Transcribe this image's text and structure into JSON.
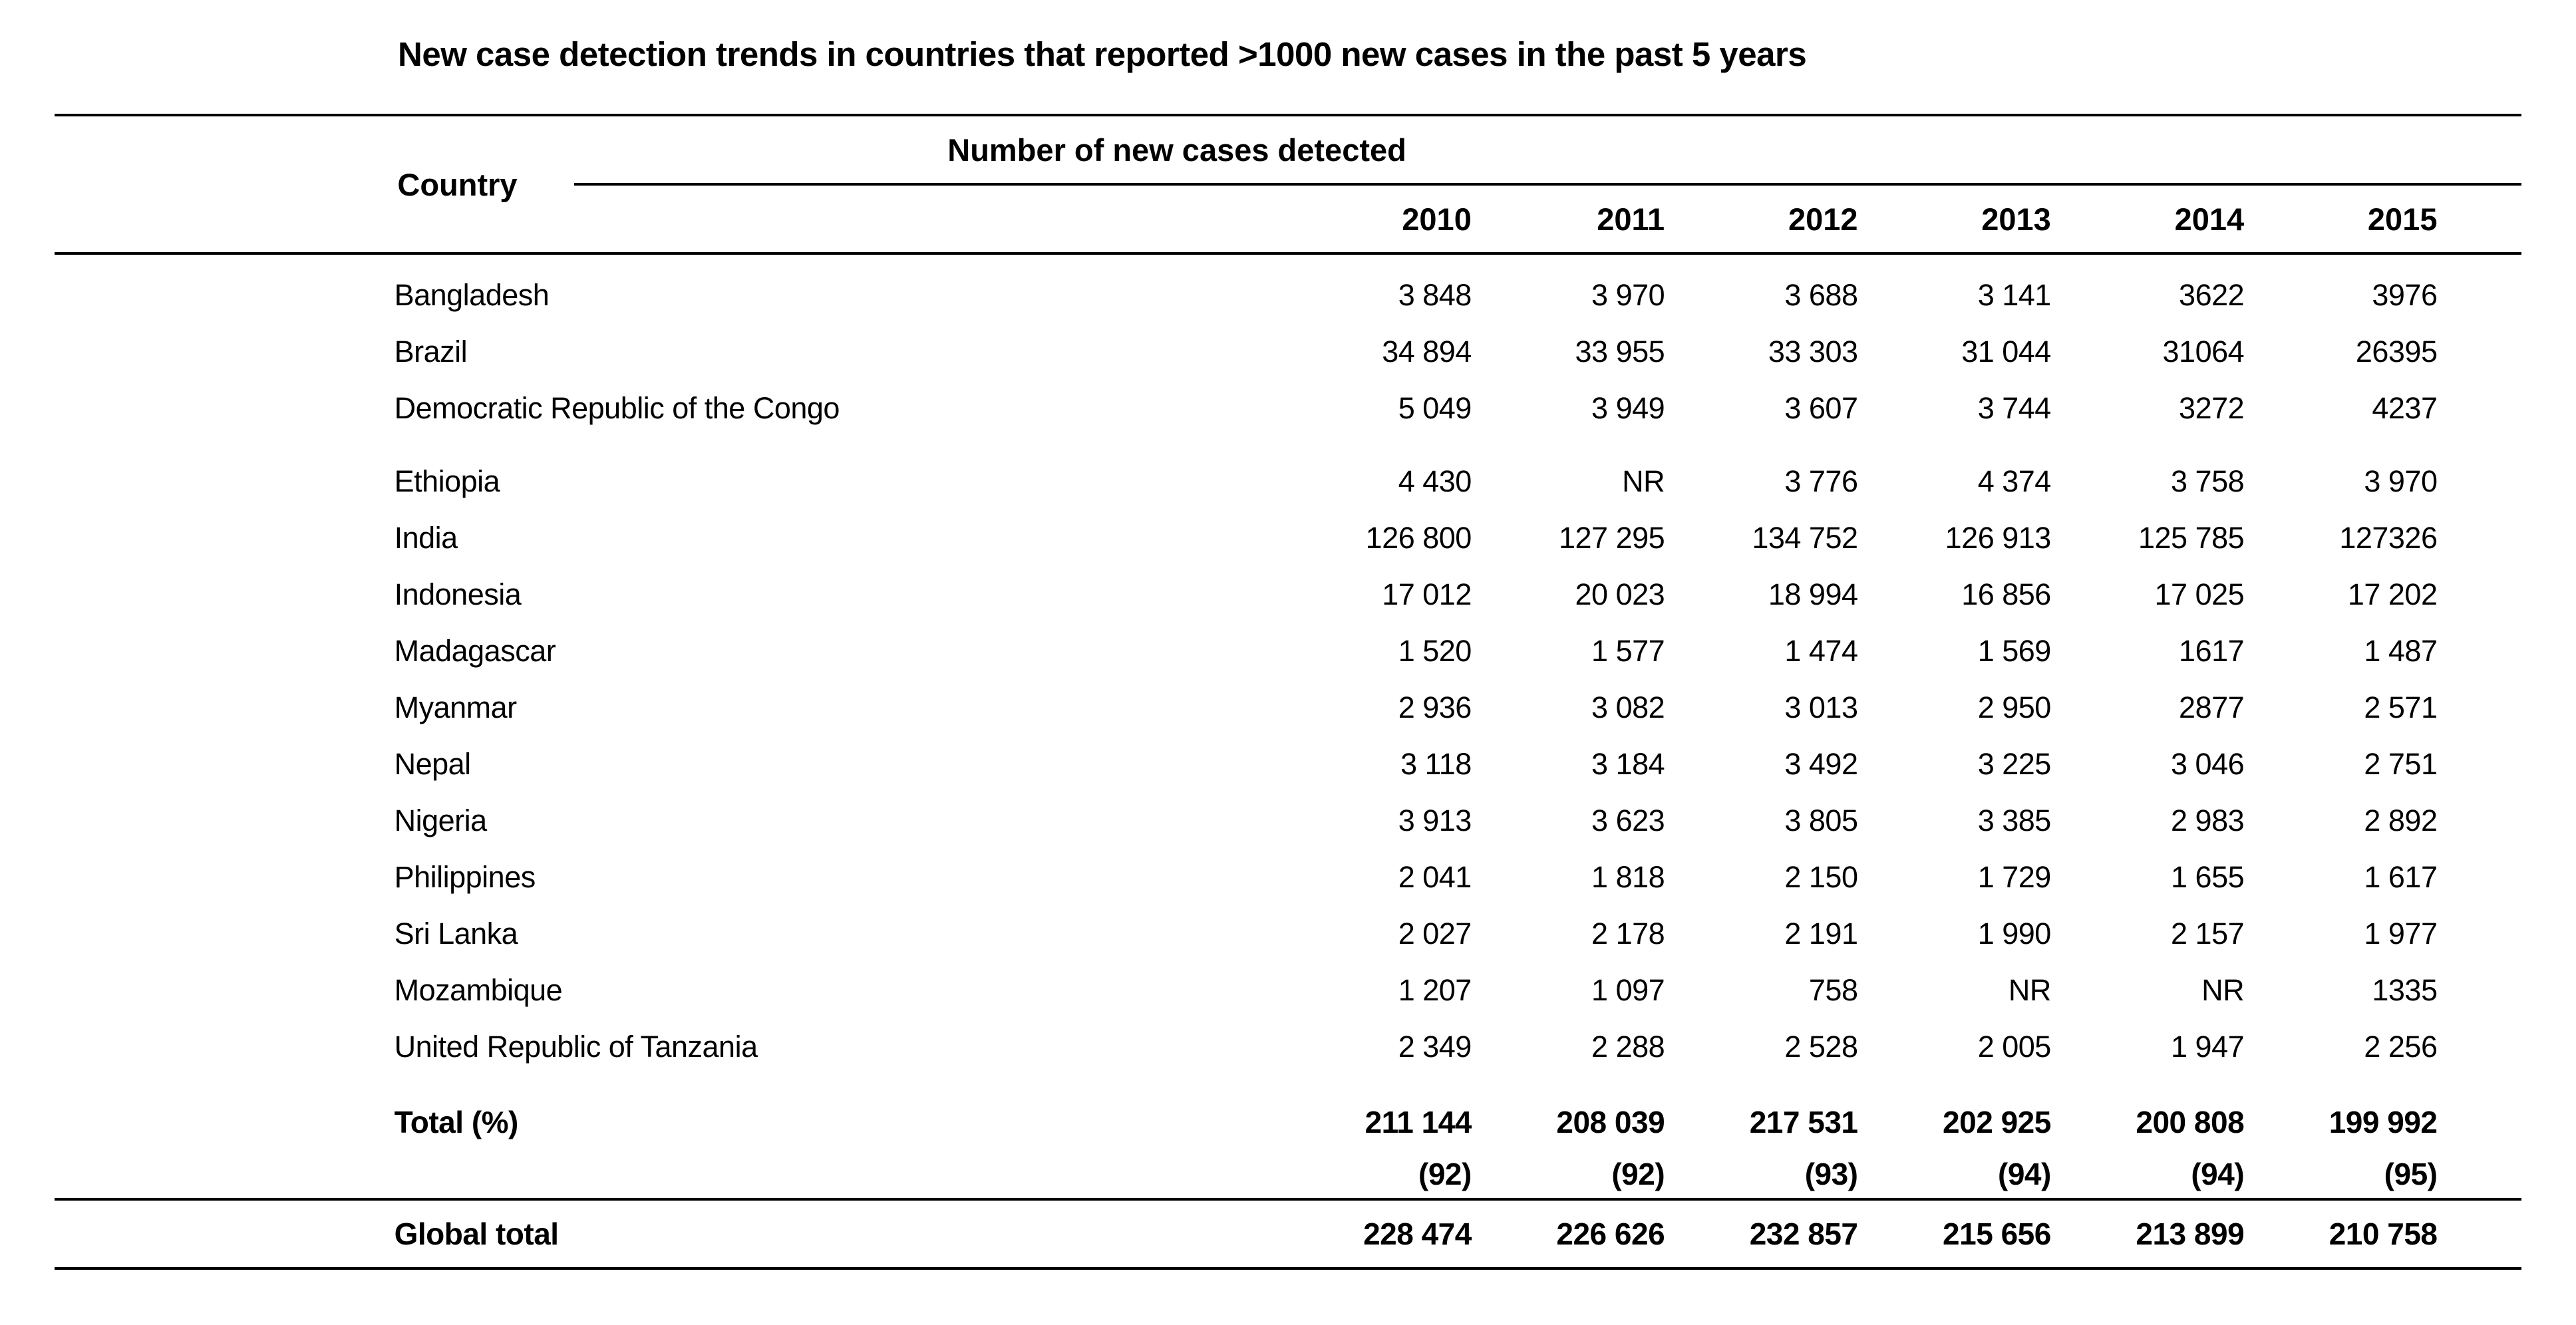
{
  "title": "New case detection trends in countries that reported >1000 new cases in the past 5 years",
  "table": {
    "country_header": "Country",
    "group_header": "Number of new cases detected",
    "years": [
      "2010",
      "2011",
      "2012",
      "2013",
      "2014",
      "2015"
    ],
    "rows": [
      {
        "label": "Bangladesh",
        "values": [
          "3 848",
          "3 970",
          "3 688",
          "3 141",
          "3622",
          "3976"
        ]
      },
      {
        "label": "Brazil",
        "values": [
          "34 894",
          "33 955",
          "33 303",
          "31 044",
          "31064",
          "26395"
        ]
      },
      {
        "label": "Democratic Republic of the Congo",
        "values": [
          "5 049",
          "3 949",
          "3 607",
          "3 744",
          "3272",
          "4237"
        ]
      },
      {
        "label": "Ethiopia",
        "values": [
          "4 430",
          "NR",
          "3 776",
          "4 374",
          "3 758",
          "3 970"
        ],
        "gap": true
      },
      {
        "label": "India",
        "values": [
          "126 800",
          "127 295",
          "134 752",
          "126 913",
          "125 785",
          "127326"
        ]
      },
      {
        "label": "Indonesia",
        "values": [
          "17 012",
          "20 023",
          "18 994",
          "16 856",
          "17 025",
          "17 202"
        ]
      },
      {
        "label": "Madagascar",
        "values": [
          "1 520",
          "1 577",
          "1 474",
          "1 569",
          "1617",
          "1 487"
        ]
      },
      {
        "label": "Myanmar",
        "values": [
          "2 936",
          "3 082",
          "3 013",
          "2 950",
          "2877",
          "2 571"
        ]
      },
      {
        "label": "Nepal",
        "values": [
          "3 118",
          "3 184",
          "3 492",
          "3 225",
          "3 046",
          "2 751"
        ]
      },
      {
        "label": "Nigeria",
        "values": [
          "3 913",
          "3 623",
          "3 805",
          "3 385",
          "2 983",
          "2 892"
        ]
      },
      {
        "label": "Philippines",
        "values": [
          "2 041",
          "1 818",
          "2 150",
          "1 729",
          "1 655",
          "1 617"
        ]
      },
      {
        "label": "Sri Lanka",
        "values": [
          "2 027",
          "2 178",
          "2 191",
          "1 990",
          "2 157",
          "1 977"
        ]
      },
      {
        "label": "Mozambique",
        "values": [
          "1 207",
          "1 097",
          "758",
          "NR",
          "NR",
          "1335"
        ]
      },
      {
        "label": "United Republic of Tanzania",
        "values": [
          "2 349",
          "2 288",
          "2 528",
          "2 005",
          "1 947",
          "2 256"
        ]
      }
    ],
    "total_row": {
      "label": "Total (%)",
      "values": [
        "211 144",
        "208 039",
        "217 531",
        "202 925",
        "200 808",
        "199 992"
      ]
    },
    "percent_row": {
      "label": "",
      "values": [
        "(92)",
        "(92)",
        "(93)",
        "(94)",
        "(94)",
        "(95)"
      ]
    },
    "global_row": {
      "label": "Global total",
      "values": [
        "228 474",
        "226 626",
        "232 857",
        "215 656",
        "213 899",
        "210 758"
      ]
    }
  }
}
